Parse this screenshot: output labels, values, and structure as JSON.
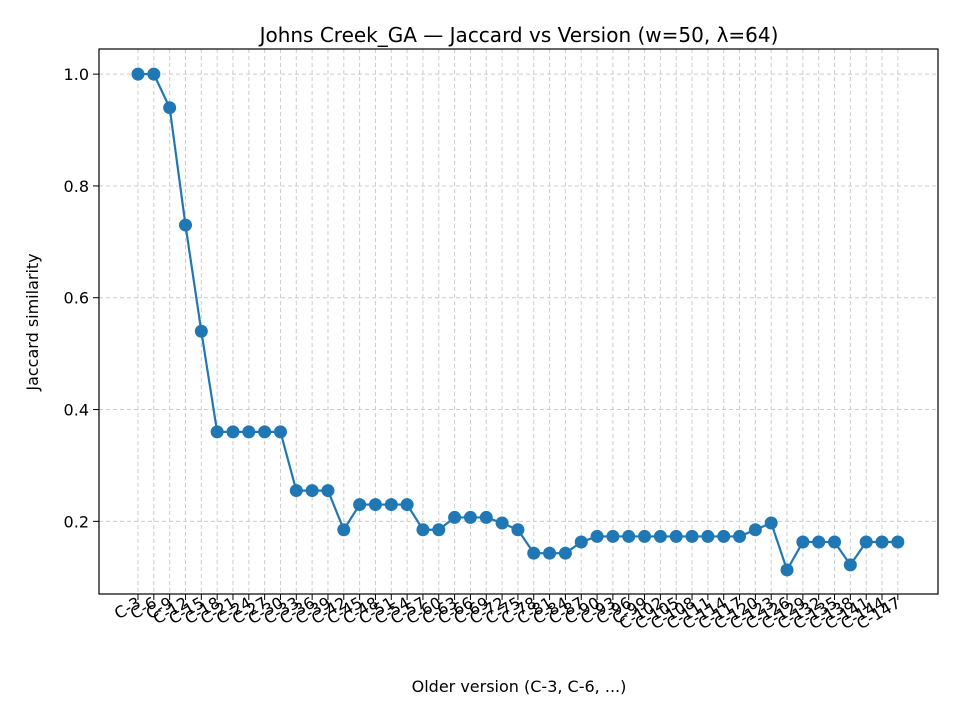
{
  "chart_data": {
    "type": "line",
    "title": "Johns Creek_GA — Jaccard vs Version (w=50, λ=64)",
    "xlabel": "Older version (C-3, C-6, ...)",
    "ylabel": "Jaccard similarity",
    "categories": [
      "C-3",
      "C-6",
      "C-9",
      "C-12",
      "C-15",
      "C-18",
      "C-21",
      "C-24",
      "C-27",
      "C-30",
      "C-33",
      "C-36",
      "C-39",
      "C-42",
      "C-45",
      "C-48",
      "C-51",
      "C-54",
      "C-57",
      "C-60",
      "C-63",
      "C-66",
      "C-69",
      "C-72",
      "C-75",
      "C-78",
      "C-81",
      "C-84",
      "C-87",
      "C-90",
      "C-93",
      "C-96",
      "C-99",
      "C-102",
      "C-105",
      "C-108",
      "C-111",
      "C-114",
      "C-117",
      "C-120",
      "C-123",
      "C-126",
      "C-129",
      "C-132",
      "C-135",
      "C-138",
      "C-141",
      "C-144",
      "C-147"
    ],
    "series": [
      {
        "name": "",
        "color": "#1f77b4",
        "values": [
          1.0,
          1.0,
          0.94,
          0.73,
          0.54,
          0.36,
          0.36,
          0.36,
          0.36,
          0.36,
          0.255,
          0.255,
          0.255,
          0.185,
          0.23,
          0.23,
          0.23,
          0.23,
          0.185,
          0.185,
          0.207,
          0.207,
          0.207,
          0.197,
          0.185,
          0.143,
          0.143,
          0.143,
          0.163,
          0.173,
          0.173,
          0.173,
          0.173,
          0.173,
          0.173,
          0.173,
          0.173,
          0.173,
          0.173,
          0.185,
          0.197,
          0.113,
          0.163,
          0.163,
          0.163,
          0.122,
          0.163,
          0.163,
          0.163
        ]
      }
    ],
    "yticks": [
      0.2,
      0.4,
      0.6,
      0.8,
      1.0
    ],
    "ylim": [
      0.07,
      1.045
    ],
    "grid": true,
    "legend": "none"
  }
}
